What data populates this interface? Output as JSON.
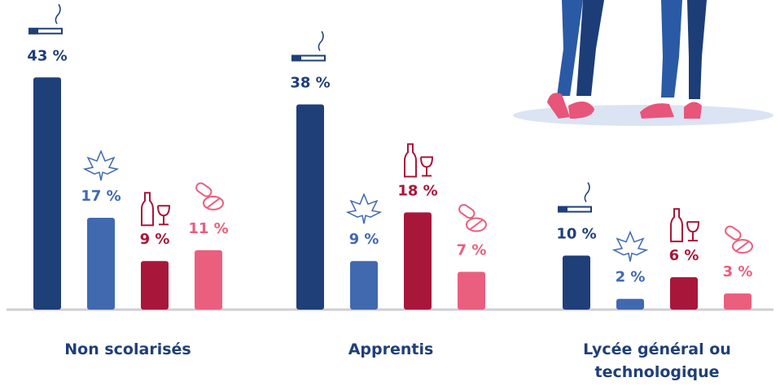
{
  "chart_data": {
    "type": "bar",
    "categories": [
      "Non scolarisés",
      "Apprentis",
      "Lycée général ou technologique"
    ],
    "series": [
      {
        "color": "#1f3f78",
        "values": [
          43,
          38,
          10
        ],
        "value_labels": [
          "43 %",
          "38 %",
          "10 %"
        ]
      },
      {
        "color": "#4169b0",
        "values": [
          17,
          9,
          2
        ],
        "value_labels": [
          "17 %",
          "9 %",
          "2 %"
        ]
      },
      {
        "color": "#a8173a",
        "values": [
          9,
          18,
          6
        ],
        "value_labels": [
          "9 %",
          "18 %",
          "6 %"
        ]
      },
      {
        "color": "#ea5f7e",
        "values": [
          11,
          7,
          3
        ],
        "value_labels": [
          "11 %",
          "7 %",
          "3 %"
        ]
      }
    ],
    "ylim": [
      0,
      45
    ]
  }
}
